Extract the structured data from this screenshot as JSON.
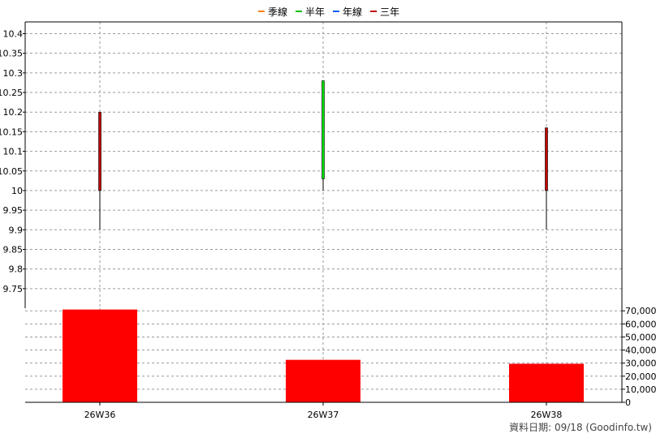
{
  "legend": [
    {
      "label": "季線",
      "color": "#ff8000"
    },
    {
      "label": "半年",
      "color": "#00c000"
    },
    {
      "label": "年線",
      "color": "#0060ff"
    },
    {
      "label": "三年",
      "color": "#c00000"
    }
  ],
  "footer": "資料日期: 09/18  (Goodinfo.tw)",
  "chart_data": [
    {
      "type": "candlestick",
      "categories": [
        "26W36",
        "26W37",
        "26W38"
      ],
      "ylim": [
        9.7,
        10.43
      ],
      "y_ticks": [
        9.75,
        9.8,
        9.85,
        9.9,
        9.95,
        10,
        10.05,
        10.1,
        10.15,
        10.2,
        10.25,
        10.3,
        10.35,
        10.4
      ],
      "y_tick_labels": [
        "9.75",
        "9.8",
        "9.85",
        "9.9",
        "9.95",
        "10",
        "10.05",
        "10.1",
        "10.15",
        "10.2",
        "10.25",
        "10.3",
        "10.35",
        "10.4"
      ],
      "candles": [
        {
          "open": 10.2,
          "high": 10.2,
          "low": 9.9,
          "close": 10.0,
          "color": "#c00000"
        },
        {
          "open": 10.03,
          "high": 10.28,
          "low": 10.0,
          "close": 10.28,
          "color": "#00e000"
        },
        {
          "open": 10.16,
          "high": 10.16,
          "low": 9.9,
          "close": 10.0,
          "color": "#c00000"
        }
      ],
      "grid": true
    },
    {
      "type": "bar",
      "categories": [
        "26W36",
        "26W37",
        "26W38"
      ],
      "values": [
        71000,
        32500,
        29500
      ],
      "color": "#ff0000",
      "ylim": [
        0,
        72000
      ],
      "y_ticks": [
        0,
        10000,
        20000,
        30000,
        40000,
        50000,
        60000,
        70000
      ],
      "y_tick_labels": [
        "0",
        "10,000",
        "20,000",
        "30,000",
        "40,000",
        "50,000",
        "60,000",
        "70,000"
      ],
      "grid": true
    }
  ]
}
